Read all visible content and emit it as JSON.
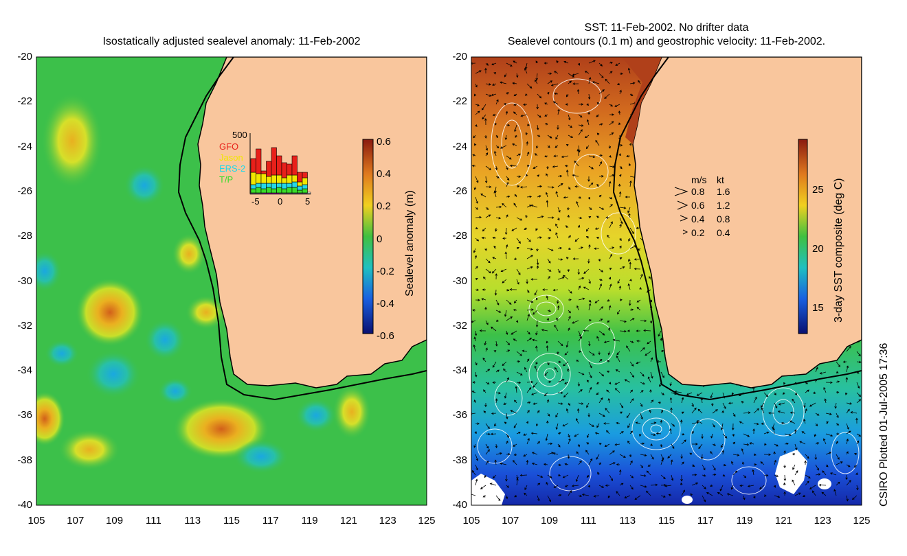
{
  "left_panel": {
    "title": "Isostatically adjusted sealevel anomaly: 11-Feb-2002",
    "x_ticks": [
      "105",
      "107",
      "109",
      "111",
      "113",
      "115",
      "117",
      "119",
      "121",
      "123",
      "125"
    ],
    "y_ticks": [
      "-20",
      "-22",
      "-24",
      "-26",
      "-28",
      "-30",
      "-32",
      "-34",
      "-36",
      "-38",
      "-40"
    ],
    "colorbar": {
      "label": "Sealevel anomaly (m)",
      "ticks": [
        "0.6",
        "0.4",
        "0.2",
        "0",
        "-0.2",
        "-0.4",
        "-0.6"
      ],
      "range": [
        -0.6,
        0.6
      ]
    },
    "satellite_inset": {
      "y_label": "500",
      "x_ticks": [
        "-5",
        "0",
        "5"
      ],
      "legend": [
        {
          "name": "GFO",
          "color": "#e8201a"
        },
        {
          "name": "Jason",
          "color": "#f2e600"
        },
        {
          "name": "ERS-2",
          "color": "#22d8e8"
        },
        {
          "name": "T/P",
          "color": "#3adc2a"
        }
      ]
    }
  },
  "right_panel": {
    "title_line1": "SST: 11-Feb-2002. No drifter data",
    "title_line2": "Sealevel contours (0.1 m) and geostrophic velocity: 11-Feb-2002.",
    "x_ticks": [
      "105",
      "107",
      "109",
      "111",
      "113",
      "115",
      "117",
      "119",
      "121",
      "123",
      "125"
    ],
    "y_ticks": [
      "-20",
      "-22",
      "-24",
      "-26",
      "-28",
      "-30",
      "-32",
      "-34",
      "-36",
      "-38",
      "-40"
    ],
    "colorbar": {
      "label": "3-day SST composite (deg C)",
      "ticks": [
        "25",
        "20",
        "15"
      ],
      "range": [
        13,
        29
      ]
    },
    "velocity_legend": {
      "header_ms": "m/s",
      "header_kt": "kt",
      "rows": [
        {
          "ms": "0.8",
          "kt": "1.6"
        },
        {
          "ms": "0.6",
          "kt": "1.2"
        },
        {
          "ms": "0.4",
          "kt": "0.8"
        },
        {
          "ms": "0.2",
          "kt": "0.4"
        }
      ]
    }
  },
  "credit": "CSIRO Plotted 01-Jul-2005 17:36",
  "colors": {
    "land": "#f9c69d",
    "ocean_green": "#3cc04a",
    "coast": "#000000"
  }
}
